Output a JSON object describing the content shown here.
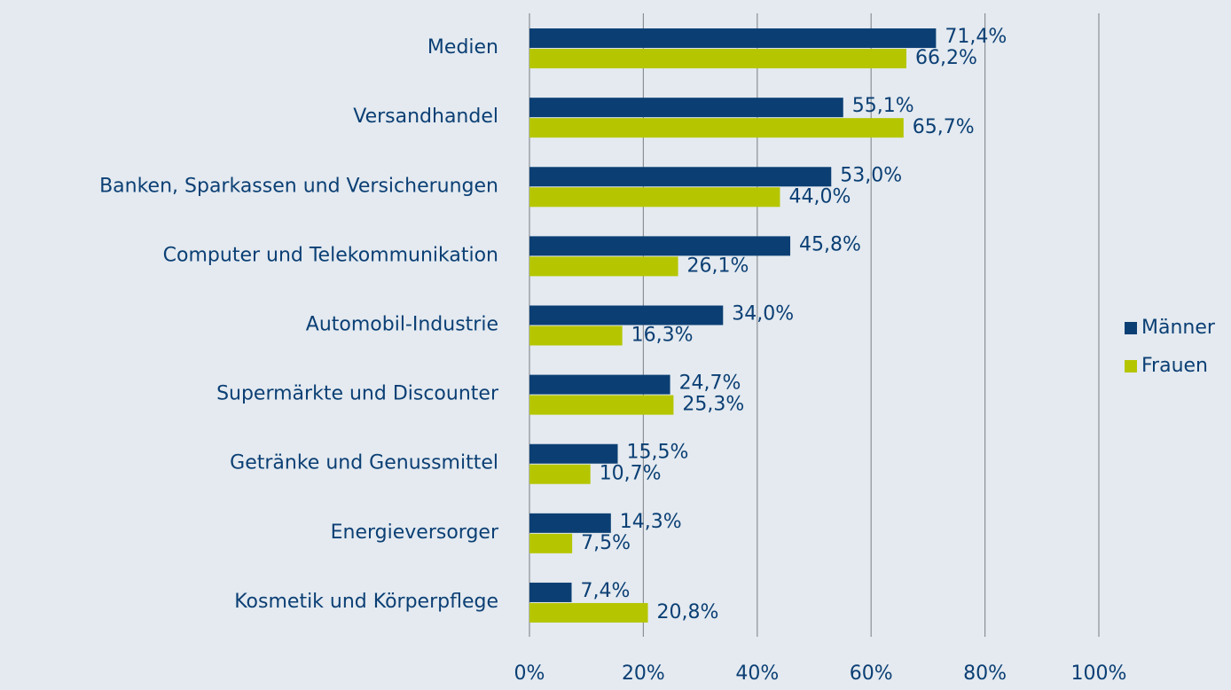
{
  "chart_data": {
    "type": "barh",
    "categories": [
      "Medien",
      "Versandhandel",
      "Banken, Sparkassen und Versicherungen",
      "Computer und Telekommunikation",
      "Automobil-Industrie",
      "Supermärkte und Discounter",
      "Getränke und Genussmittel",
      "Energieversorger",
      "Kosmetik und Körperpflege"
    ],
    "series": [
      {
        "name": "Männer",
        "color": "#0b3f74",
        "values": [
          71.4,
          55.1,
          53.0,
          45.8,
          34.0,
          24.7,
          15.5,
          14.3,
          7.4
        ],
        "value_labels": [
          "71,4%",
          "55,1%",
          "53,0%",
          "45,8%",
          "34,0%",
          "24,7%",
          "15,5%",
          "14,3%",
          "7,4%"
        ]
      },
      {
        "name": "Frauen",
        "color": "#b5c600",
        "values": [
          66.2,
          65.7,
          44.0,
          26.1,
          16.3,
          25.3,
          10.7,
          7.5,
          20.8
        ],
        "value_labels": [
          "66,2%",
          "65,7%",
          "44,0%",
          "26,1%",
          "16,3%",
          "25,3%",
          "10,7%",
          "7,5%",
          "20,8%"
        ]
      }
    ],
    "xlim": [
      0,
      100
    ],
    "xticks": [
      {
        "value": 0,
        "label": "0%"
      },
      {
        "value": 20,
        "label": "20%"
      },
      {
        "value": 40,
        "label": "40%"
      },
      {
        "value": 60,
        "label": "60%"
      },
      {
        "value": 80,
        "label": "80%"
      },
      {
        "value": 100,
        "label": "100%"
      }
    ],
    "grid": true,
    "legend": "right"
  }
}
